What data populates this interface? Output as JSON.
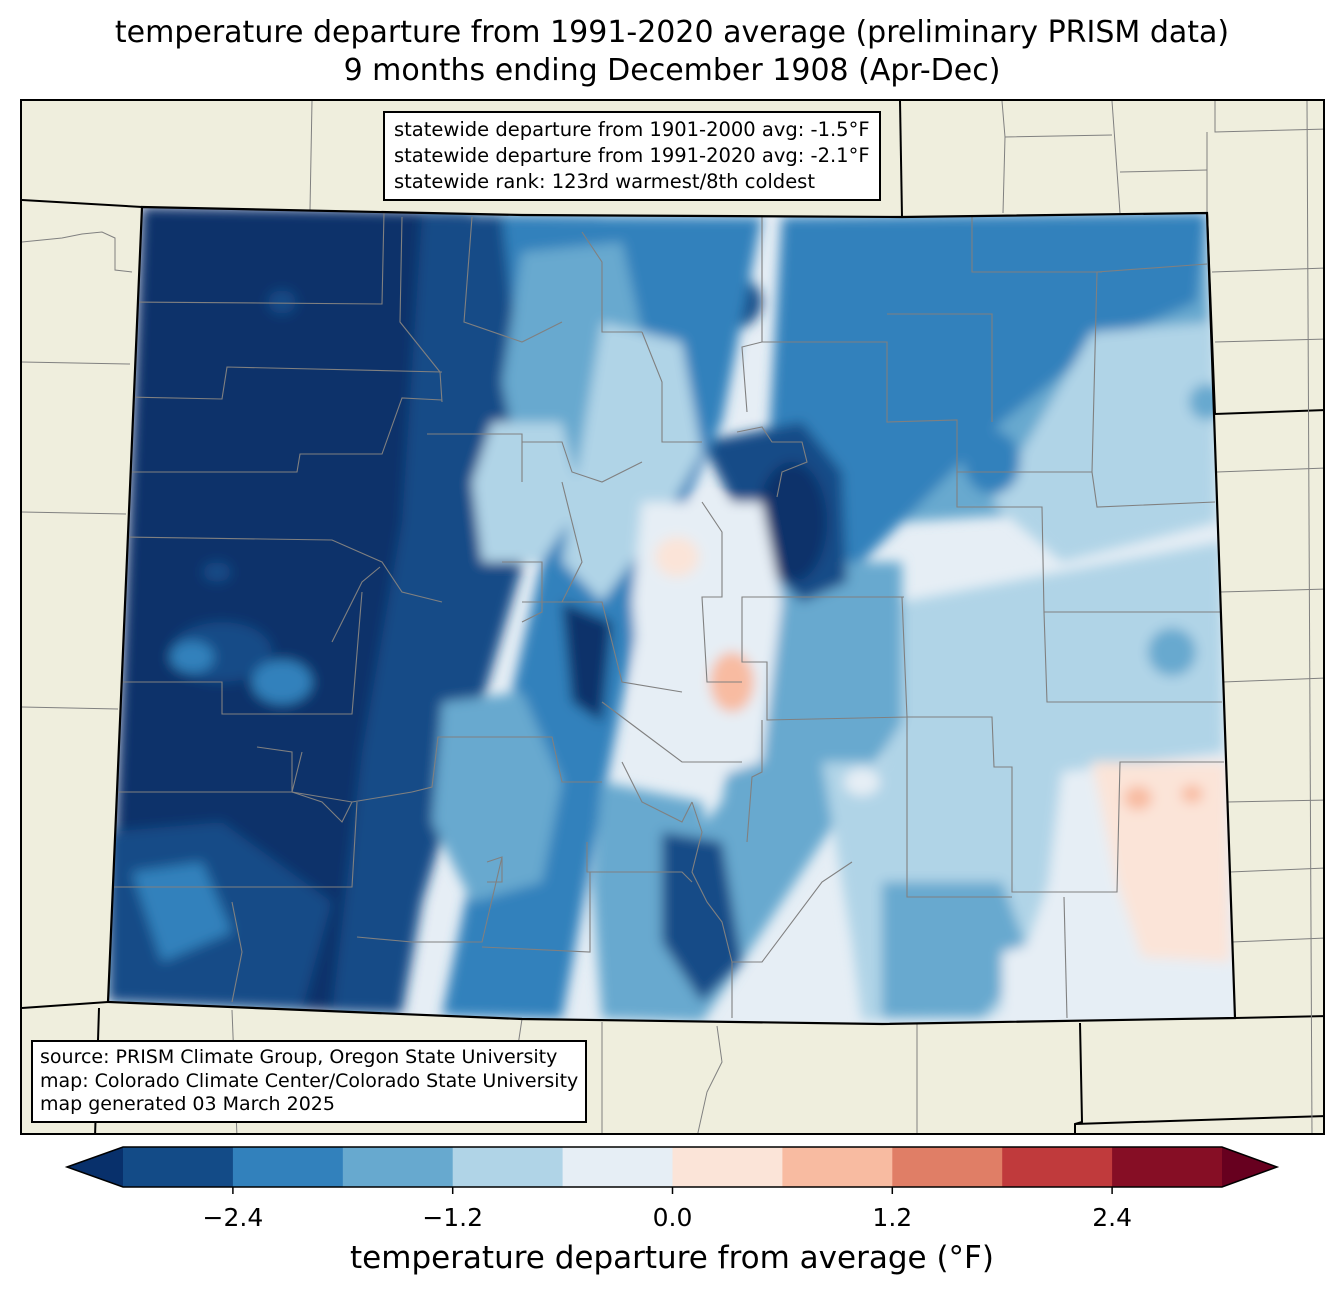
{
  "title": {
    "line1": "temperature departure from 1991-2020 average (preliminary PRISM data)",
    "line2": "9 months ending December 1908 (Apr-Dec)"
  },
  "stats": {
    "line1": "statewide departure from 1901-2000 avg: -1.5°F",
    "line2": "statewide departure from 1991-2020 avg: -2.1°F",
    "line3": "statewide rank: 123rd warmest/8th coldest"
  },
  "credits": {
    "line1": "source: PRISM Climate Group, Oregon State University",
    "line2": "map: Colorado Climate Center/Colorado State University",
    "line3": "map generated 03 March 2025"
  },
  "colorbar": {
    "label": "temperature departure from average (°F)",
    "levels": [
      -3.0,
      -2.4,
      -1.8,
      -1.2,
      -0.6,
      0.0,
      0.6,
      1.2,
      1.8,
      2.4,
      3.0
    ],
    "colors": [
      "#08306b",
      "#134b87",
      "#3281bc",
      "#67a9cf",
      "#b0d4e7",
      "#e6eef5",
      "#fbe4d8",
      "#f8bba1",
      "#e07e66",
      "#c03a3c",
      "#860e25",
      "#67001f"
    ],
    "ticks": [
      {
        "value": -2.4,
        "label": "−2.4"
      },
      {
        "value": -1.2,
        "label": "−1.2"
      },
      {
        "value": 0.0,
        "label": "0.0"
      },
      {
        "value": 1.2,
        "label": "1.2"
      },
      {
        "value": 2.4,
        "label": "2.4"
      }
    ]
  },
  "map_colors": {
    "background_land": "#efeedd",
    "county_lines": "#808080",
    "state_lines": "#000000"
  }
}
